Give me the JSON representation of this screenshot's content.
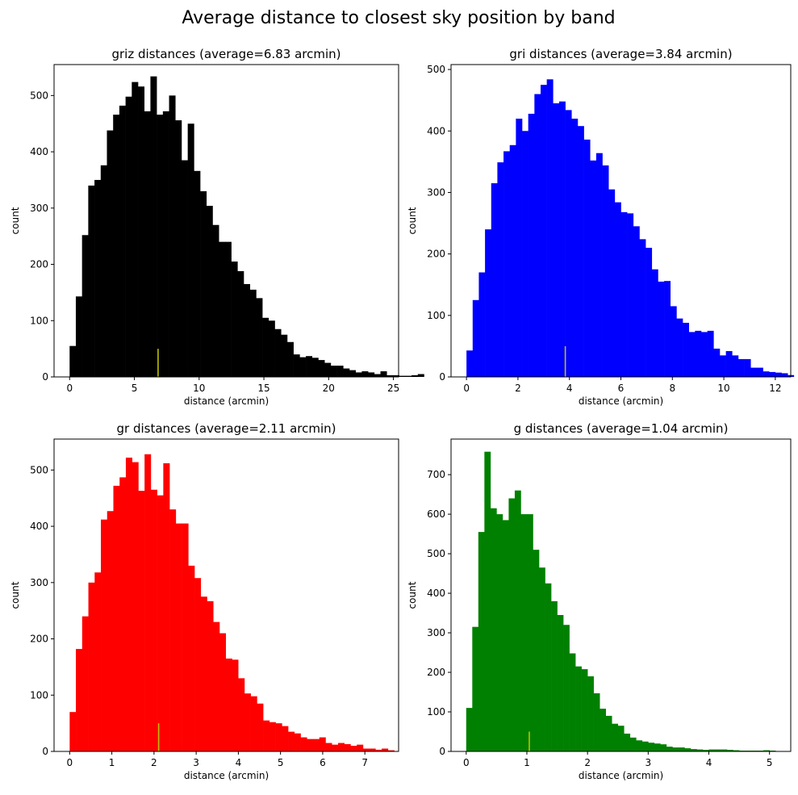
{
  "figure_title": "Average distance to closest sky position by band",
  "chart_data": [
    {
      "type": "bar",
      "title": "griz distances (average=6.83 arcmin)",
      "xlabel": "distance (arcmin)",
      "ylabel": "count",
      "color": "#000000",
      "marker_color": "#bfbf00",
      "average": 6.83,
      "marker_height": 50,
      "xlim": [
        -1.2,
        25.4
      ],
      "ylim": [
        0,
        555
      ],
      "xticks": [
        0,
        5,
        10,
        15,
        20,
        25
      ],
      "yticks": [
        0,
        100,
        200,
        300,
        400,
        500
      ],
      "bin_start": 0.0,
      "bin_width": 0.48,
      "values": [
        55,
        143,
        252,
        340,
        350,
        376,
        438,
        466,
        482,
        498,
        524,
        516,
        472,
        534,
        466,
        472,
        500,
        456,
        385,
        450,
        366,
        330,
        304,
        270,
        240,
        240,
        205,
        188,
        165,
        155,
        140,
        105,
        100,
        85,
        75,
        62,
        40,
        35,
        37,
        34,
        30,
        25,
        20,
        20,
        15,
        12,
        8,
        10,
        8,
        5,
        10,
        3,
        3,
        2,
        2,
        3,
        5
      ]
    },
    {
      "type": "bar",
      "title": "gri distances (average=3.84 arcmin)",
      "xlabel": "distance (arcmin)",
      "ylabel": "count",
      "color": "#0000ff",
      "marker_color": "#bfbf00",
      "average": 3.84,
      "marker_height": 50,
      "xlim": [
        -0.6,
        12.6
      ],
      "ylim": [
        0,
        508
      ],
      "xticks": [
        0,
        2,
        4,
        6,
        8,
        10,
        12
      ],
      "yticks": [
        0,
        100,
        200,
        300,
        400,
        500
      ],
      "bin_start": 0.0,
      "bin_width": 0.24,
      "values": [
        43,
        125,
        170,
        240,
        315,
        349,
        367,
        377,
        420,
        400,
        428,
        460,
        475,
        484,
        445,
        448,
        434,
        420,
        408,
        386,
        352,
        364,
        344,
        305,
        284,
        268,
        266,
        245,
        224,
        210,
        175,
        155,
        156,
        115,
        95,
        88,
        73,
        75,
        73,
        75,
        46,
        35,
        42,
        35,
        29,
        29,
        15,
        15,
        9,
        8,
        7,
        6,
        3
      ]
    },
    {
      "type": "bar",
      "title": "gr distances (average=2.11 arcmin)",
      "xlabel": "distance (arcmin)",
      "ylabel": "count",
      "color": "#ff0000",
      "marker_color": "#bfbf00",
      "average": 2.11,
      "marker_height": 50,
      "xlim": [
        -0.37,
        7.8
      ],
      "ylim": [
        0,
        555
      ],
      "xticks": [
        0,
        1,
        2,
        3,
        4,
        5,
        6,
        7
      ],
      "yticks": [
        0,
        100,
        200,
        300,
        400,
        500
      ],
      "bin_start": 0.0,
      "bin_width": 0.148,
      "values": [
        70,
        182,
        240,
        300,
        318,
        412,
        427,
        472,
        487,
        522,
        514,
        463,
        528,
        465,
        455,
        512,
        430,
        405,
        405,
        330,
        308,
        275,
        267,
        230,
        210,
        165,
        163,
        130,
        103,
        98,
        85,
        55,
        52,
        50,
        45,
        35,
        32,
        25,
        22,
        22,
        25,
        15,
        12,
        15,
        13,
        10,
        12,
        5,
        5,
        3,
        5,
        2
      ]
    },
    {
      "type": "bar",
      "title": "g distances (average=1.04 arcmin)",
      "xlabel": "distance (arcmin)",
      "ylabel": "count",
      "color": "#008000",
      "marker_color": "#bfbf00",
      "average": 1.04,
      "marker_height": 50,
      "xlim": [
        -0.25,
        5.35
      ],
      "ylim": [
        0,
        790
      ],
      "xticks": [
        0,
        1,
        2,
        3,
        4,
        5
      ],
      "yticks": [
        0,
        100,
        200,
        300,
        400,
        500,
        600,
        700
      ],
      "bin_start": 0.0,
      "bin_width": 0.1,
      "values": [
        110,
        315,
        555,
        758,
        615,
        600,
        585,
        640,
        660,
        600,
        600,
        510,
        465,
        425,
        380,
        345,
        320,
        248,
        215,
        208,
        190,
        147,
        108,
        90,
        70,
        65,
        45,
        35,
        28,
        25,
        22,
        20,
        18,
        12,
        10,
        10,
        8,
        6,
        5,
        4,
        5,
        5,
        5,
        4,
        3,
        2,
        2,
        2,
        2,
        3,
        2
      ]
    }
  ]
}
